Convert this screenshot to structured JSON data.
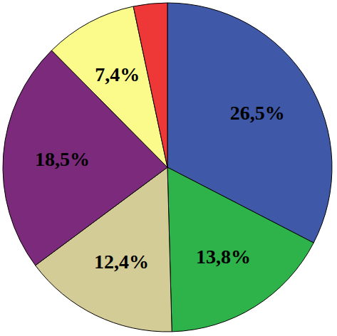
{
  "chart_data": {
    "type": "pie",
    "categories": [
      null,
      null,
      null,
      null,
      null,
      null
    ],
    "values": [
      26.5,
      13.8,
      12.4,
      18.5,
      7.4,
      2.7
    ],
    "value_labels": [
      "26,5%",
      "13,8%",
      "12,4%",
      "18,5%",
      "7,4%",
      null
    ],
    "colors": [
      "#3f58a8",
      "#2db34a",
      "#d3cc96",
      "#7b2a7c",
      "#fbfb8c",
      "#ee3838"
    ],
    "data_labels": true
  }
}
